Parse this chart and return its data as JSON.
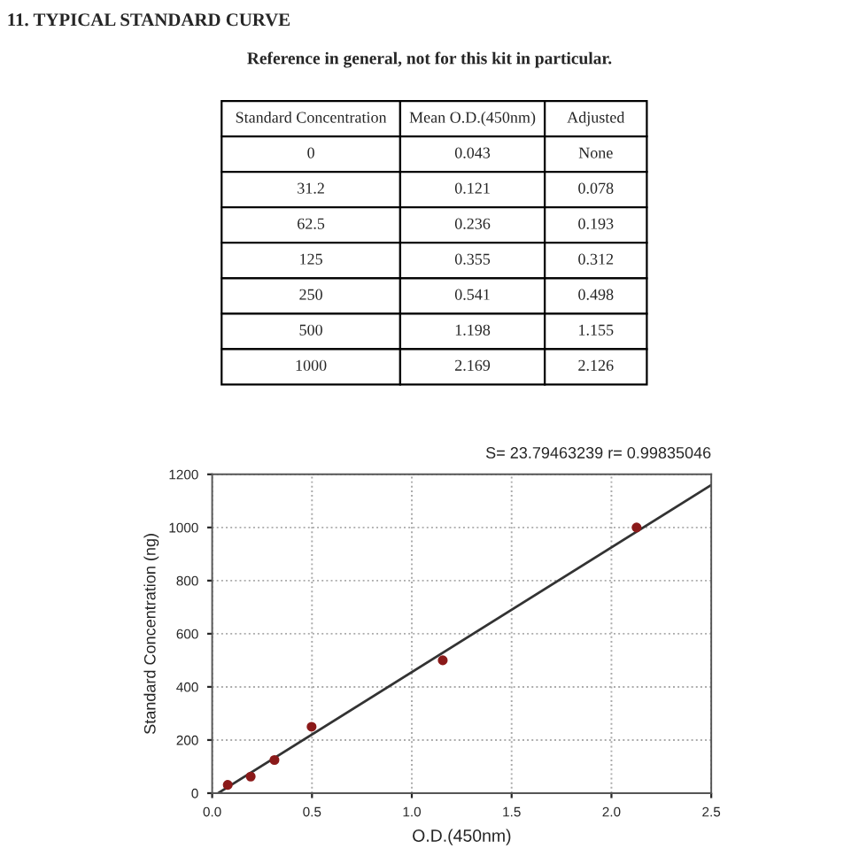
{
  "chart_data": [
    {
      "type": "other",
      "title": "11. TYPICAL STANDARD CURVE",
      "subtitle": "Reference in general, not for this kit in particular.",
      "categories": [
        "Standard Concentration",
        "Mean O.D.(450nm)",
        "Adjusted"
      ],
      "annotations": [
        "0",
        "0.043",
        "None",
        "31.2",
        "0.121",
        "0.078",
        "62.5",
        "0.236",
        "0.193",
        "125",
        "0.355",
        "0.312",
        "250",
        "0.541",
        "0.498",
        "500",
        "1.198",
        "1.155",
        "1000",
        "2.169",
        "2.126"
      ]
    },
    {
      "type": "scatter",
      "xlabel": "O.D.(450nm)",
      "ylabel": "Standard Concentration (ng)",
      "series": [
        {
          "type": "scatter",
          "color": "#8b1a1a",
          "x": [
            0.078,
            0.193,
            0.312,
            0.498,
            1.155,
            2.126
          ],
          "values": [
            31.2,
            62.5,
            125,
            250,
            500,
            1000
          ]
        },
        {
          "type": "line",
          "color": "#333333",
          "marker": "none",
          "x": [
            0.03,
            2.5
          ],
          "values": [
            0,
            1160
          ]
        }
      ],
      "xlim": [
        0,
        2.5
      ],
      "xticks": [
        {
          "value": 0,
          "label": "0.0"
        },
        0.5,
        {
          "value": 1,
          "label": "1.0"
        },
        1.5,
        {
          "value": 2,
          "label": "2.0"
        },
        2.5
      ],
      "ylim": [
        0,
        1200
      ],
      "yticks": [
        0,
        200,
        400,
        600,
        800,
        1000,
        1200
      ],
      "grid": true,
      "marker": "circle",
      "annotations": [
        "S= 23.79463239 r= 0.99835046"
      ]
    }
  ]
}
